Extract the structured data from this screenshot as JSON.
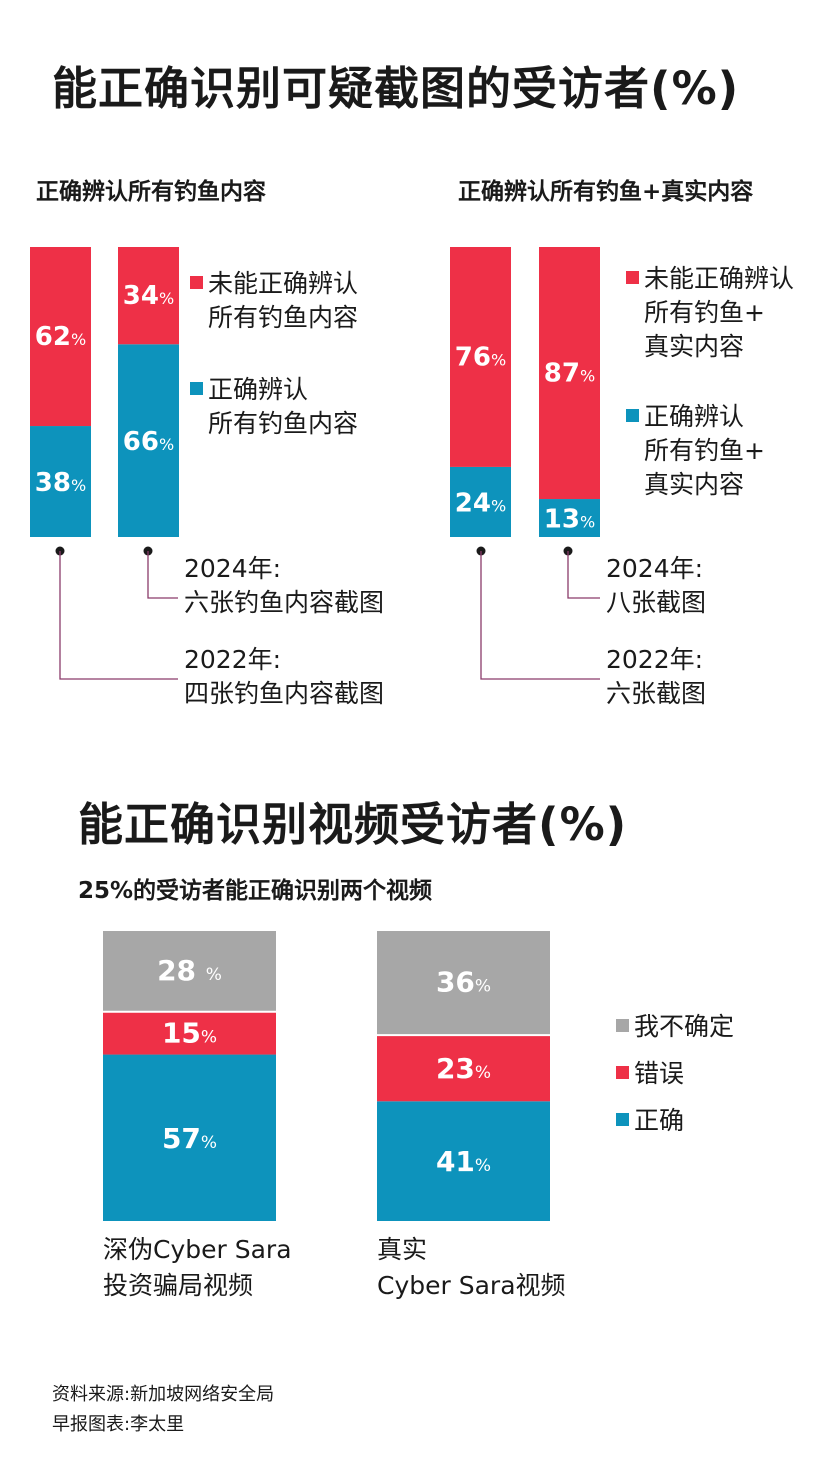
{
  "titles": {
    "main": "能正确识别可疑截图的受访者(%)",
    "video": "能正确识别视频受访者(%)"
  },
  "colors": {
    "red": "#ee3047",
    "blue": "#0d93bc",
    "gray": "#a7a7a7",
    "connector": "#8a3b6a"
  },
  "chart_data": [
    {
      "type": "bar",
      "stacked": true,
      "subtitle": "正确辨认所有钓鱼内容",
      "categories": [
        "2022年: 四张钓鱼内容截图",
        "2024年: 六张钓鱼内容截图"
      ],
      "series": [
        {
          "name": "正确辨认所有钓鱼内容",
          "color": "#0d93bc",
          "values": [
            38,
            66
          ]
        },
        {
          "name": "未能正确辨认所有钓鱼内容",
          "color": "#ee3047",
          "values": [
            62,
            34
          ]
        }
      ],
      "value_labels": [
        [
          "38",
          "62"
        ],
        [
          "66",
          "34"
        ]
      ],
      "legend": [
        {
          "color": "#ee3047",
          "lines": [
            "未能正确辨认",
            "所有钓鱼内容"
          ]
        },
        {
          "color": "#0d93bc",
          "lines": [
            "正确辨认",
            "所有钓鱼内容"
          ]
        }
      ],
      "year_labels": [
        {
          "year": "2022年:",
          "desc": "四张钓鱼内容截图"
        },
        {
          "year": "2024年:",
          "desc": "六张钓鱼内容截图"
        }
      ]
    },
    {
      "type": "bar",
      "stacked": true,
      "subtitle": "正确辨认所有钓鱼+真实内容",
      "categories": [
        "2022年: 六张截图",
        "2024年: 八张截图"
      ],
      "series": [
        {
          "name": "正确辨认所有钓鱼+真实内容",
          "color": "#0d93bc",
          "values": [
            24,
            13
          ]
        },
        {
          "name": "未能正确辨认所有钓鱼+真实内容",
          "color": "#ee3047",
          "values": [
            76,
            87
          ]
        }
      ],
      "value_labels": [
        [
          "24",
          "76"
        ],
        [
          "13",
          "87"
        ]
      ],
      "legend": [
        {
          "color": "#ee3047",
          "lines": [
            "未能正确辨认",
            "所有钓鱼+",
            "真实内容"
          ]
        },
        {
          "color": "#0d93bc",
          "lines": [
            "正确辨认",
            "所有钓鱼+",
            "真实内容"
          ]
        }
      ],
      "year_labels": [
        {
          "year": "2022年:",
          "desc": "六张截图"
        },
        {
          "year": "2024年:",
          "desc": "八张截图"
        }
      ]
    },
    {
      "type": "bar",
      "stacked": true,
      "subtitle": "25%的受访者能正确识别两个视频",
      "categories": [
        "深伪Cyber Sara投资骗局视频",
        "真实Cyber Sara视频"
      ],
      "category_lines": [
        [
          "深伪Cyber Sara",
          "投资骗局视频"
        ],
        [
          "真实",
          "Cyber Sara视频"
        ]
      ],
      "series": [
        {
          "name": "正确",
          "color": "#0d93bc",
          "values": [
            57,
            41
          ]
        },
        {
          "name": "错误",
          "color": "#ee3047",
          "values": [
            15,
            23
          ]
        },
        {
          "name": "我不确定",
          "color": "#a7a7a7",
          "values": [
            28,
            36
          ]
        }
      ],
      "value_labels": [
        [
          "57",
          "15",
          "28 "
        ],
        [
          "41",
          "23",
          "36"
        ]
      ],
      "legend": [
        {
          "color": "#a7a7a7",
          "lines": [
            "我不确定"
          ]
        },
        {
          "color": "#ee3047",
          "lines": [
            "错误"
          ]
        },
        {
          "color": "#0d93bc",
          "lines": [
            "正确"
          ]
        }
      ]
    }
  ],
  "footer": {
    "source": "资料来源:新加坡网络安全局",
    "credit": "早报图表:李太里"
  }
}
